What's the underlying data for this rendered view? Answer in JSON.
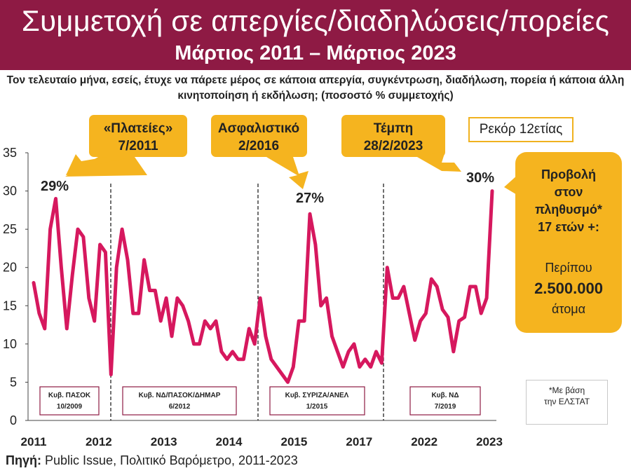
{
  "header": {
    "title": "Συμμετοχή σε απεργίες/διαδηλώσεις/πορείες",
    "subtitle": "Μάρτιος 2011 – Μάρτιος 2023"
  },
  "question": "Τον τελευταίο μήνα, εσείς, έτυχε να πάρετε μέρος σε κάποια απεργία, συγκέντρωση, διαδήλωση, πορεία ή κάποια άλλη κινητοποίηση ή εκδήλωση; (ποσοστό % συμμετοχής)",
  "callouts": [
    {
      "line1": "«Πλατείες»",
      "line2": "7/2011"
    },
    {
      "line1": "Ασφαλιστικό",
      "line2": "2/2016"
    },
    {
      "line1": "Τέμπη",
      "line2": "28/2/2023"
    }
  ],
  "record_label": "Ρεκόρ 12ετίας",
  "peak_labels": [
    "29%",
    "27%",
    "30%"
  ],
  "governments": [
    {
      "line1": "Κυβ. ΠΑΣΟΚ",
      "line2": "10/2009"
    },
    {
      "line1": "Κυβ. ΝΔ/ΠΑΣΟΚ/ΔΗΜΑΡ",
      "line2": "6/2012"
    },
    {
      "line1": "Κυβ. ΣΥΡΙΖΑ/ΑΝΕΛ",
      "line2": "1/2015"
    },
    {
      "line1": "Κυβ. ΝΔ",
      "line2": "7/2019"
    }
  ],
  "projection": {
    "line1": "Προβολή\nστον\nπληθυσμό*\n17 ετών +:",
    "line2": "Περίπου",
    "line3": "2.500.000",
    "line4": "άτομα"
  },
  "footnote": "*Με βάση\nτην ΕΛΣΤΑΤ",
  "source": {
    "label": "Πηγή:",
    "text": "Public Issue, Πολιτικό Βαρόμετρο, 2011-2023"
  },
  "colors": {
    "header_bg": "#8e1a44",
    "line": "#d6185e",
    "callout": "#f5b41f",
    "gov_border": "#8e1a44"
  },
  "chart_data": {
    "type": "line",
    "ylim": [
      0,
      35
    ],
    "yticks": [
      0,
      5,
      10,
      15,
      20,
      25,
      30,
      35
    ],
    "x_tick_labels": [
      "2011",
      "2012",
      "2013",
      "2014",
      "2015",
      "2017",
      "2022",
      "2023"
    ],
    "grid": false,
    "series": [
      {
        "values": [
          18,
          14,
          12,
          25,
          29,
          20,
          12,
          19,
          25,
          24,
          16,
          13,
          23,
          22,
          6,
          20,
          25,
          21,
          14,
          14,
          21,
          17,
          17,
          13,
          16,
          11,
          16,
          15,
          13,
          10,
          10,
          13,
          12,
          13,
          9,
          8,
          9,
          8,
          8,
          12,
          10,
          16,
          11,
          8,
          7,
          6,
          5,
          7,
          13,
          13,
          27,
          23,
          15,
          16,
          11,
          9,
          7,
          9,
          10,
          7,
          8,
          7,
          9,
          7.5,
          20,
          16,
          16,
          17.5,
          14,
          10.5,
          13,
          14,
          18.5,
          17.5,
          14.5,
          13.5,
          9,
          13,
          13.5,
          17.5,
          17.5,
          14,
          16,
          30
        ]
      }
    ]
  }
}
